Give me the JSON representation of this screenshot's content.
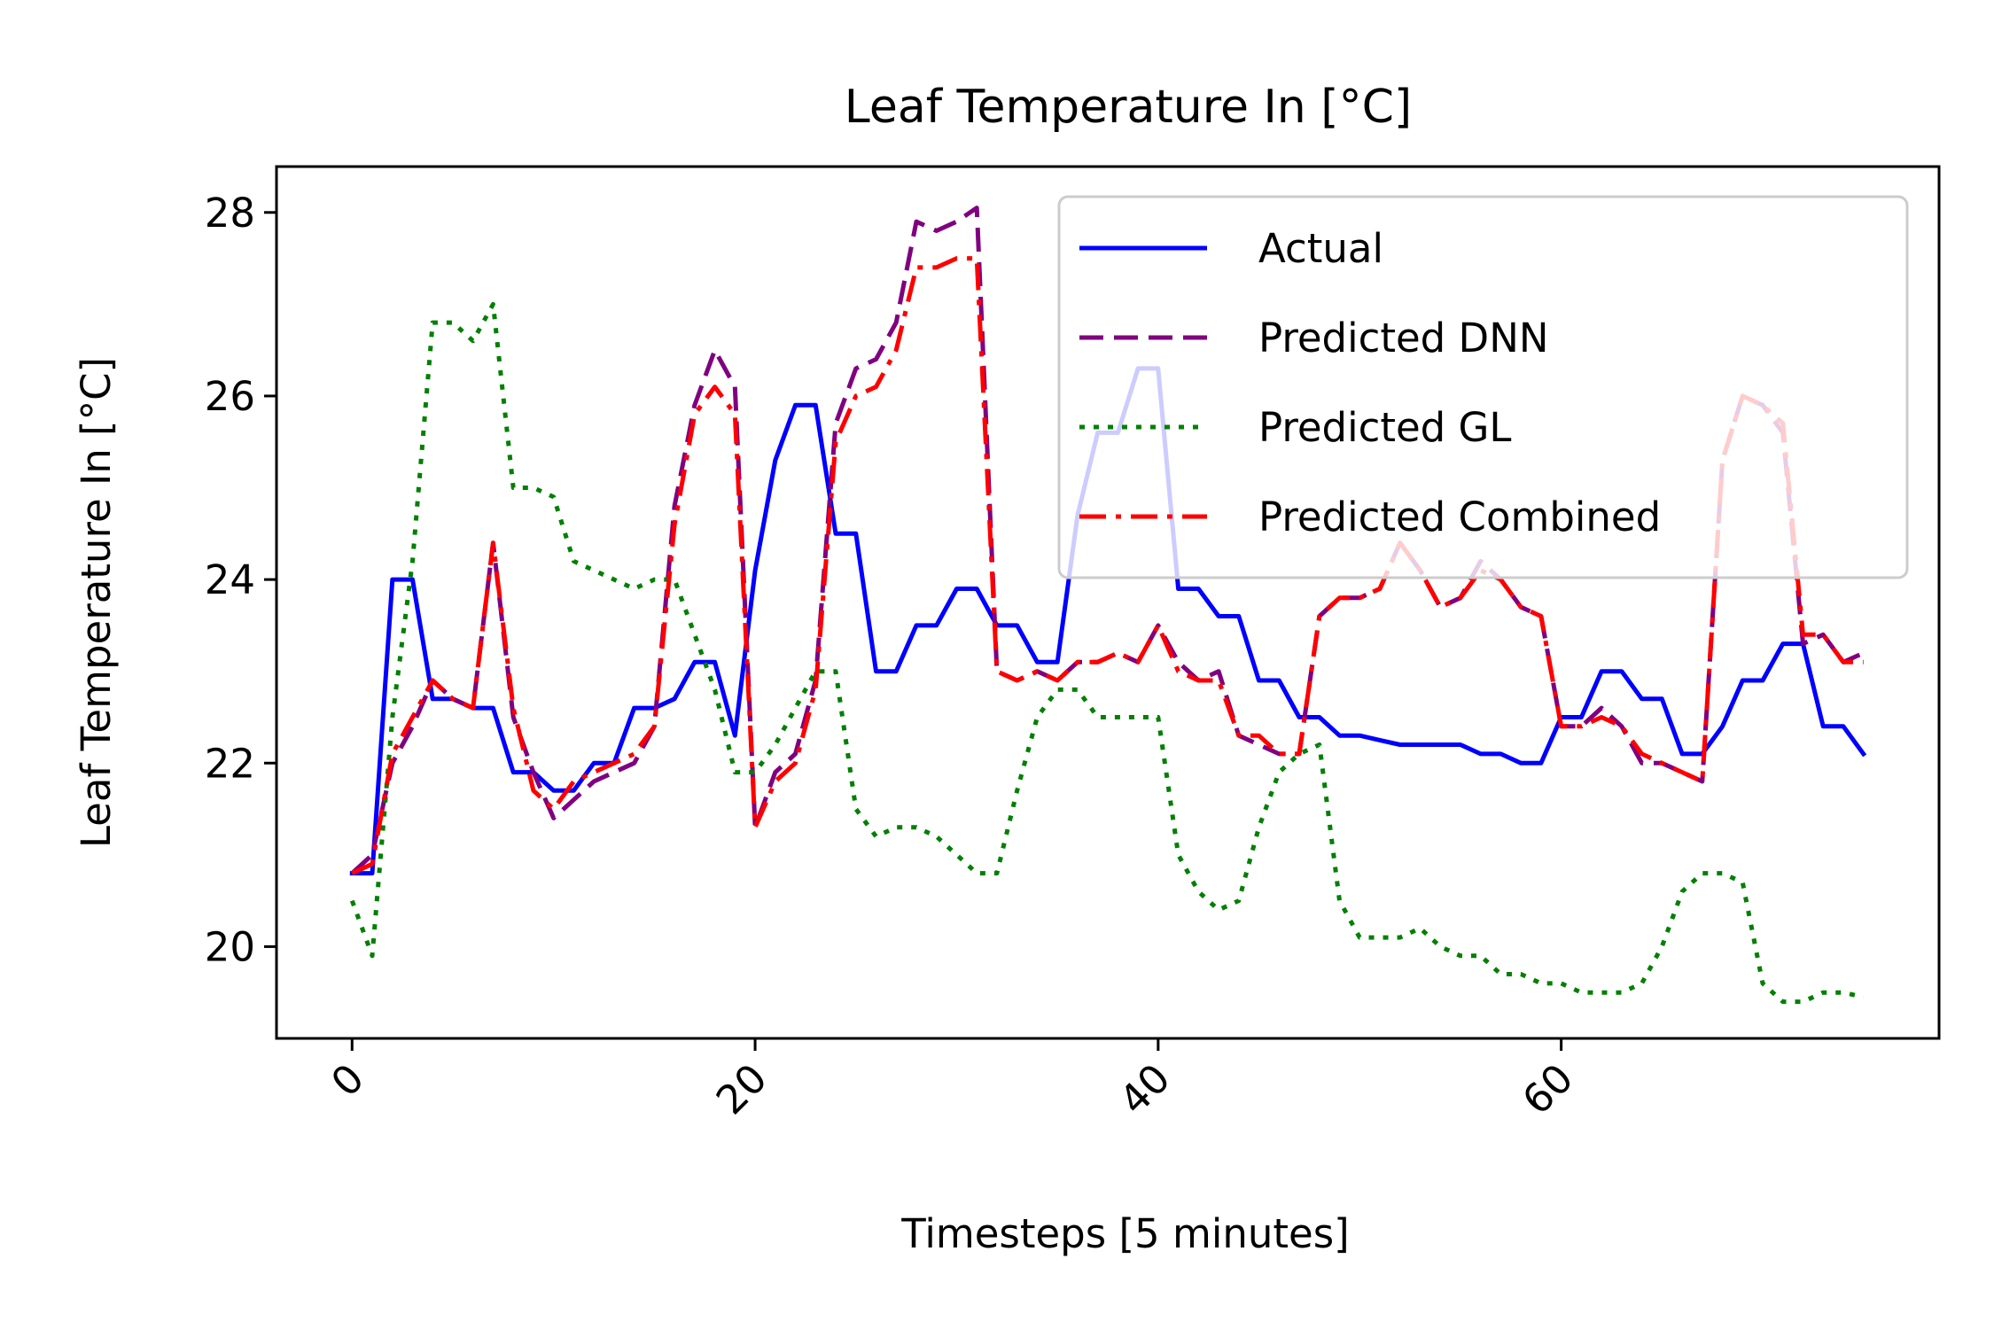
{
  "chart_data": {
    "type": "line",
    "title": "Leaf Temperature In [°C]",
    "xlabel": "Timesteps [5 minutes]",
    "ylabel": "Leaf Temperature In [°C]",
    "xlim": [
      -3.75,
      78.75
    ],
    "ylim": [
      19.0,
      28.5
    ],
    "xticks": [
      0,
      20,
      40,
      60
    ],
    "yticks": [
      20,
      22,
      24,
      26,
      28
    ],
    "xtick_labels": [
      "0",
      "20",
      "40",
      "60"
    ],
    "ytick_labels": [
      "20",
      "22",
      "24",
      "26",
      "28"
    ],
    "x_tick_rotation": 45,
    "grid": false,
    "legend_position": "top-right",
    "series": [
      {
        "name": "Actual",
        "color": "#0000ff",
        "dash": "solid",
        "values": [
          20.8,
          20.8,
          24.0,
          24.0,
          22.7,
          22.7,
          22.6,
          22.6,
          21.9,
          21.9,
          21.7,
          21.7,
          22.0,
          22.0,
          22.6,
          22.6,
          22.7,
          23.1,
          23.1,
          22.3,
          24.1,
          25.3,
          25.9,
          25.9,
          24.5,
          24.5,
          23.0,
          23.0,
          23.5,
          23.5,
          23.9,
          23.9,
          23.5,
          23.5,
          23.1,
          23.1,
          24.7,
          25.6,
          25.6,
          26.3,
          26.3,
          23.9,
          23.9,
          23.6,
          23.6,
          22.9,
          22.9,
          22.5,
          22.5,
          22.3,
          22.3,
          22.25,
          22.2,
          22.2,
          22.2,
          22.2,
          22.1,
          22.1,
          22.0,
          22.0,
          22.5,
          22.5,
          23.0,
          23.0,
          22.7,
          22.7,
          22.1,
          22.1,
          22.4,
          22.9,
          22.9,
          23.3,
          23.3,
          22.4,
          22.4,
          22.1
        ]
      },
      {
        "name": "Predicted DNN",
        "color": "#800080",
        "dash": "dashed",
        "values": [
          20.8,
          21.0,
          22.0,
          22.4,
          22.9,
          22.7,
          22.6,
          24.4,
          22.5,
          21.9,
          21.4,
          21.6,
          21.8,
          21.9,
          22.0,
          22.4,
          24.8,
          25.9,
          26.5,
          26.1,
          21.3,
          21.9,
          22.1,
          22.9,
          25.7,
          26.3,
          26.4,
          26.8,
          27.9,
          27.8,
          27.9,
          28.05,
          23.0,
          22.9,
          23.0,
          22.9,
          23.1,
          23.1,
          23.2,
          23.1,
          23.5,
          23.1,
          22.9,
          23.0,
          22.3,
          22.2,
          22.1,
          22.1,
          23.6,
          23.8,
          23.8,
          23.9,
          24.4,
          24.1,
          23.7,
          23.8,
          24.2,
          24.0,
          23.7,
          23.6,
          22.4,
          22.4,
          22.6,
          22.4,
          22.0,
          22.0,
          21.9,
          21.8,
          25.3,
          26.0,
          25.9,
          25.6,
          23.3,
          23.4,
          23.1,
          23.2
        ]
      },
      {
        "name": "Predicted GL",
        "color": "#008000",
        "dash": "dotted",
        "values": [
          20.5,
          19.9,
          22.5,
          24.2,
          26.8,
          26.8,
          26.6,
          27.0,
          25.0,
          25.0,
          24.9,
          24.2,
          24.1,
          24.0,
          23.9,
          24.0,
          24.0,
          23.4,
          22.8,
          21.9,
          21.9,
          22.2,
          22.6,
          23.0,
          23.0,
          21.5,
          21.2,
          21.3,
          21.3,
          21.2,
          21.0,
          20.8,
          20.8,
          21.7,
          22.5,
          22.8,
          22.8,
          22.5,
          22.5,
          22.5,
          22.5,
          21.0,
          20.6,
          20.4,
          20.5,
          21.3,
          21.9,
          22.1,
          22.2,
          20.5,
          20.1,
          20.1,
          20.1,
          20.2,
          20.0,
          19.9,
          19.9,
          19.7,
          19.7,
          19.6,
          19.6,
          19.5,
          19.5,
          19.5,
          19.6,
          20.0,
          20.6,
          20.8,
          20.8,
          20.7,
          19.6,
          19.4,
          19.4,
          19.5,
          19.5,
          19.45
        ]
      },
      {
        "name": "Predicted Combined",
        "color": "#ff0000",
        "dash": "dashdot",
        "values": [
          20.8,
          20.9,
          22.1,
          22.5,
          22.9,
          22.7,
          22.6,
          24.4,
          22.6,
          21.7,
          21.5,
          21.8,
          21.9,
          22.0,
          22.1,
          22.4,
          24.6,
          25.8,
          26.1,
          25.8,
          21.3,
          21.8,
          22.0,
          22.8,
          25.5,
          26.0,
          26.1,
          26.5,
          27.4,
          27.4,
          27.5,
          27.5,
          23.0,
          22.9,
          23.0,
          22.9,
          23.1,
          23.1,
          23.2,
          23.1,
          23.5,
          23.0,
          22.9,
          22.9,
          22.3,
          22.3,
          22.1,
          22.1,
          23.6,
          23.8,
          23.8,
          23.9,
          24.4,
          24.1,
          23.7,
          23.8,
          24.1,
          24.0,
          23.7,
          23.6,
          22.4,
          22.4,
          22.5,
          22.4,
          22.1,
          22.0,
          21.9,
          21.8,
          25.3,
          26.0,
          25.9,
          25.7,
          23.4,
          23.4,
          23.1,
          23.1
        ]
      }
    ]
  }
}
